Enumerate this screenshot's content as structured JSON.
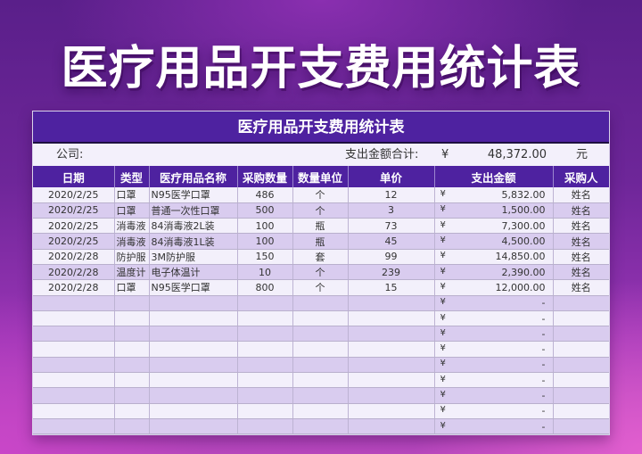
{
  "banner_title": "医疗用品开支费用统计表",
  "sheet": {
    "title": "医疗用品开支费用统计表",
    "company_label": "公司:",
    "total_label": "支出金额合计:",
    "currency": "¥",
    "total_value": "48,372.00",
    "total_unit": "元"
  },
  "columns": [
    "日期",
    "类型",
    "医疗用品名称",
    "采购数量",
    "数量单位",
    "单价",
    "支出金额",
    "采购人"
  ],
  "rows": [
    {
      "date": "2020/2/25",
      "type": "口罩",
      "name": "N95医学口罩",
      "qty": "486",
      "unit": "个",
      "price": "12",
      "yen": "¥",
      "amount": "5,832.00",
      "buyer": "姓名"
    },
    {
      "date": "2020/2/25",
      "type": "口罩",
      "name": "普通一次性口罩",
      "qty": "500",
      "unit": "个",
      "price": "3",
      "yen": "¥",
      "amount": "1,500.00",
      "buyer": "姓名"
    },
    {
      "date": "2020/2/25",
      "type": "消毒液",
      "name": "84消毒液2L装",
      "qty": "100",
      "unit": "瓶",
      "price": "73",
      "yen": "¥",
      "amount": "7,300.00",
      "buyer": "姓名"
    },
    {
      "date": "2020/2/25",
      "type": "消毒液",
      "name": "84消毒液1L装",
      "qty": "100",
      "unit": "瓶",
      "price": "45",
      "yen": "¥",
      "amount": "4,500.00",
      "buyer": "姓名"
    },
    {
      "date": "2020/2/28",
      "type": "防护服",
      "name": "3M防护服",
      "qty": "150",
      "unit": "套",
      "price": "99",
      "yen": "¥",
      "amount": "14,850.00",
      "buyer": "姓名"
    },
    {
      "date": "2020/2/28",
      "type": "温度计",
      "name": "电子体温计",
      "qty": "10",
      "unit": "个",
      "price": "239",
      "yen": "¥",
      "amount": "2,390.00",
      "buyer": "姓名"
    },
    {
      "date": "2020/2/28",
      "type": "口罩",
      "name": "N95医学口罩",
      "qty": "800",
      "unit": "个",
      "price": "15",
      "yen": "¥",
      "amount": "12,000.00",
      "buyer": "姓名"
    },
    {
      "date": "",
      "type": "",
      "name": "",
      "qty": "",
      "unit": "",
      "price": "",
      "yen": "¥",
      "amount": "-",
      "buyer": ""
    },
    {
      "date": "",
      "type": "",
      "name": "",
      "qty": "",
      "unit": "",
      "price": "",
      "yen": "¥",
      "amount": "-",
      "buyer": ""
    },
    {
      "date": "",
      "type": "",
      "name": "",
      "qty": "",
      "unit": "",
      "price": "",
      "yen": "¥",
      "amount": "-",
      "buyer": ""
    },
    {
      "date": "",
      "type": "",
      "name": "",
      "qty": "",
      "unit": "",
      "price": "",
      "yen": "¥",
      "amount": "-",
      "buyer": ""
    },
    {
      "date": "",
      "type": "",
      "name": "",
      "qty": "",
      "unit": "",
      "price": "",
      "yen": "¥",
      "amount": "-",
      "buyer": ""
    },
    {
      "date": "",
      "type": "",
      "name": "",
      "qty": "",
      "unit": "",
      "price": "",
      "yen": "¥",
      "amount": "-",
      "buyer": ""
    },
    {
      "date": "",
      "type": "",
      "name": "",
      "qty": "",
      "unit": "",
      "price": "",
      "yen": "¥",
      "amount": "-",
      "buyer": ""
    },
    {
      "date": "",
      "type": "",
      "name": "",
      "qty": "",
      "unit": "",
      "price": "",
      "yen": "¥",
      "amount": "-",
      "buyer": ""
    },
    {
      "date": "",
      "type": "",
      "name": "",
      "qty": "",
      "unit": "",
      "price": "",
      "yen": "¥",
      "amount": "-",
      "buyer": ""
    }
  ],
  "colors": {
    "header_bg": "#4e22a0",
    "row_light": "#f3f0fb",
    "row_dark": "#d9ccef"
  }
}
